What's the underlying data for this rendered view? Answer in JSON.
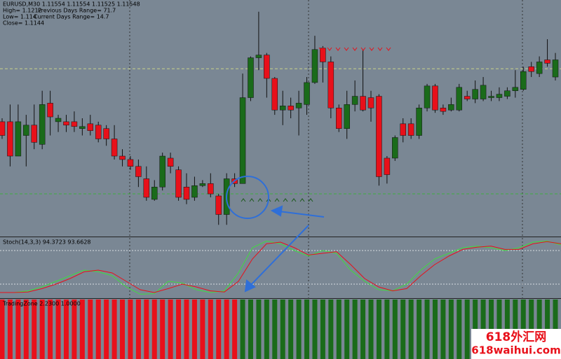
{
  "chart_data": [
    {
      "type": "candlestick",
      "title": "EURUSD,M30 1.11554 1.11554 1.11525 1.11548",
      "annotations": [
        "High= 1.1212",
        "Previous Days Range= 71.7",
        "Low= 1.114",
        "Current Days Range= 14.7",
        "Close= 1.1144"
      ],
      "up_color": "#1a6b1a",
      "down_color": "#e8101a",
      "ylim": [
        1.107,
        1.124
      ],
      "reference_lines": [
        {
          "value": 1.1191,
          "color": "#c8d28a"
        },
        {
          "value": 1.11,
          "color": "#3fae3f"
        }
      ],
      "open": [
        1.11525,
        1.11525,
        1.11275,
        1.11425,
        1.115,
        1.1136,
        1.1166,
        1.11525,
        1.11525,
        1.11525,
        1.11475,
        1.1151,
        1.115,
        1.11475,
        1.114,
        1.11275,
        1.1125,
        1.112,
        1.1111,
        1.1096,
        1.1105,
        1.1126,
        1.11175,
        1.1105,
        1.10975,
        1.1106,
        1.11075,
        1.10985,
        1.1085,
        1.1111,
        1.11075,
        1.117,
        1.1199,
        1.1201,
        1.1184,
        1.1161,
        1.1164,
        1.11625,
        1.1165,
        1.1181,
        1.1206,
        1.1196,
        1.11625,
        1.11475,
        1.1165,
        1.1171,
        1.117,
        1.1171,
        1.1126,
        1.1126,
        1.1151,
        1.1151,
        1.11425,
        1.11625,
        1.11785,
        1.11625,
        1.1161,
        1.1161,
        1.1171,
        1.1169,
        1.1169,
        1.117,
        1.117,
        1.1171,
        1.1175,
        1.1176,
        1.11925,
        1.11875,
        1.11975,
        1.1185
      ],
      "high": [
        1.1155,
        1.1165,
        1.1165,
        1.11575,
        1.1165,
        1.1175,
        1.1175,
        1.11575,
        1.11575,
        1.116,
        1.1155,
        1.11575,
        1.11525,
        1.115,
        1.115,
        1.11325,
        1.11275,
        1.1125,
        1.112,
        1.111,
        1.113,
        1.113,
        1.112,
        1.1115,
        1.11125,
        1.111,
        1.1115,
        1.11,
        1.1115,
        1.1115,
        1.11875,
        1.12,
        1.12325,
        1.12025,
        1.1185,
        1.1175,
        1.117,
        1.1175,
        1.1185,
        1.1215,
        1.12075,
        1.12,
        1.1165,
        1.1175,
        1.11825,
        1.1205,
        1.1175,
        1.11725,
        1.11275,
        1.11425,
        1.1155,
        1.1155,
        1.1165,
        1.118,
        1.118,
        1.1165,
        1.117,
        1.118,
        1.1175,
        1.11825,
        1.1185,
        1.1175,
        1.11775,
        1.11775,
        1.119,
        1.11925,
        1.1196,
        1.12,
        1.12125,
        1.12025
      ],
      "low": [
        1.114,
        1.112,
        1.11275,
        1.112,
        1.11325,
        1.11325,
        1.11425,
        1.1145,
        1.1145,
        1.1145,
        1.11425,
        1.11425,
        1.11375,
        1.1135,
        1.1125,
        1.112,
        1.11175,
        1.1105,
        1.1095,
        1.1095,
        1.11025,
        1.1115,
        1.1095,
        1.10925,
        1.1095,
        1.1105,
        1.10975,
        1.10775,
        1.10775,
        1.1105,
        1.11075,
        1.11675,
        1.119,
        1.117,
        1.11575,
        1.115,
        1.1155,
        1.11425,
        1.11575,
        1.118,
        1.1181,
        1.1155,
        1.1145,
        1.114,
        1.116,
        1.116,
        1.11525,
        1.1106,
        1.11075,
        1.1124,
        1.11375,
        1.114,
        1.114,
        1.116,
        1.1159,
        1.11575,
        1.116,
        1.116,
        1.11675,
        1.1166,
        1.11675,
        1.11675,
        1.11675,
        1.1169,
        1.117,
        1.1175,
        1.1185,
        1.1185,
        1.11925,
        1.11825
      ],
      "close": [
        1.11425,
        1.11275,
        1.11525,
        1.115,
        1.11375,
        1.1165,
        1.1156,
        1.1155,
        1.115,
        1.1149,
        1.1149,
        1.1146,
        1.114,
        1.114,
        1.11275,
        1.1125,
        1.112,
        1.11125,
        1.10975,
        1.1105,
        1.11275,
        1.112,
        1.10975,
        1.1096,
        1.1106,
        1.11075,
        1.11,
        1.1085,
        1.1111,
        1.11075,
        1.117,
        1.1199,
        1.1201,
        1.1184,
        1.1161,
        1.1164,
        1.1161,
        1.1166,
        1.1181,
        1.1205,
        1.1196,
        1.11625,
        1.11475,
        1.1165,
        1.1171,
        1.1161,
        1.11625,
        1.11125,
        1.1114,
        1.1141,
        1.11425,
        1.11425,
        1.11625,
        1.11785,
        1.1161,
        1.116,
        1.1165,
        1.11775,
        1.1169,
        1.1176,
        1.1179,
        1.1171,
        1.11725,
        1.1175,
        1.11775,
        1.1189,
        1.1189,
        1.1196,
        1.1195,
        1.11975
      ]
    },
    {
      "type": "line",
      "title": "Stoch(14,3,3) 94.3723 93.6628",
      "ylim": [
        0,
        100
      ],
      "levels": [
        80,
        20
      ],
      "series": [
        {
          "color": "#3fdc3f",
          "values": [
            5,
            5,
            8,
            15,
            25,
            35,
            45,
            42,
            35,
            15,
            2,
            3,
            25,
            22,
            10,
            5,
            8,
            40,
            85,
            97,
            92,
            80,
            70,
            80,
            75,
            45,
            25,
            10,
            8,
            20,
            45,
            65,
            75,
            85,
            88,
            85,
            80,
            85,
            95,
            97,
            90
          ]
        },
        {
          "color": "#e8101a",
          "values": [
            5,
            5,
            6,
            12,
            20,
            30,
            42,
            45,
            40,
            25,
            10,
            5,
            12,
            20,
            15,
            8,
            6,
            25,
            65,
            92,
            95,
            85,
            72,
            75,
            78,
            55,
            30,
            15,
            8,
            12,
            35,
            55,
            70,
            82,
            86,
            88,
            82,
            82,
            92,
            96,
            92
          ]
        }
      ]
    },
    {
      "type": "bar",
      "title": "TradingZone 2.2300 1.0000",
      "ylim": [
        -1,
        1
      ],
      "up_color": "#1a6b1a",
      "down_color": "#e8101a",
      "values": [
        -1,
        -1,
        -1,
        -1,
        -1,
        -1,
        -1,
        -1,
        -1,
        -1,
        -1,
        -1,
        -1,
        -1,
        -1,
        -1,
        -1,
        -1,
        -1,
        -1,
        -1,
        -1,
        -1,
        -1,
        -1,
        -1,
        -1,
        -1,
        -1,
        -1,
        1,
        1,
        1,
        1,
        1,
        1,
        1,
        1,
        1,
        1,
        1,
        1,
        1,
        1,
        1,
        1,
        1,
        1,
        1,
        1,
        1,
        1,
        1,
        1,
        1,
        1,
        1,
        1,
        1,
        1,
        1,
        1,
        1,
        1,
        1,
        1,
        1,
        1,
        1,
        1
      ]
    }
  ],
  "watermark": {
    "name": "618外汇网",
    "url": "618waihui.com"
  }
}
